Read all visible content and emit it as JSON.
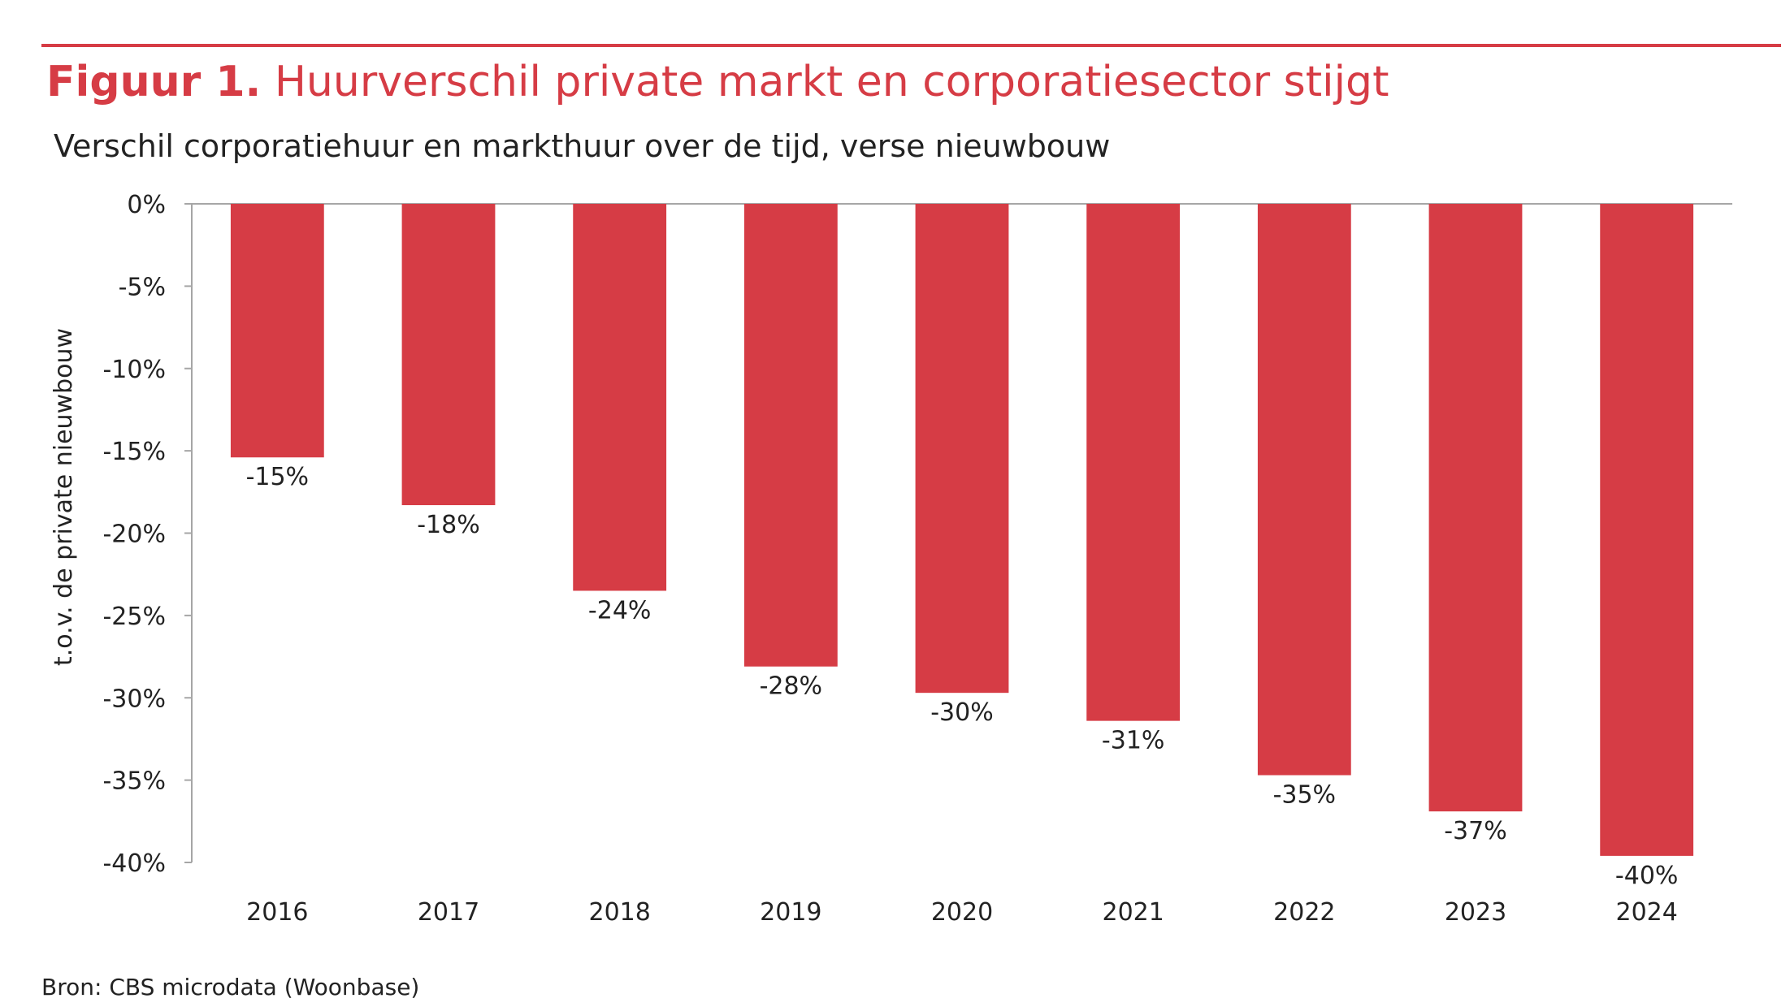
{
  "header": {
    "title_prefix": "Figuur 1.",
    "title": "Huurverschil private markt en corporatiesector stijgt",
    "subtitle": "Verschil corporatiehuur en markthuur over de tijd, verse nieuwbouw"
  },
  "footer": {
    "source": "Bron: CBS microdata (Woonbase)"
  },
  "colors": {
    "accent": "#d63c45",
    "bar": "#d63c45",
    "axis": "#a6a6a6",
    "text": "#222222"
  },
  "chart_data": {
    "type": "bar",
    "categories": [
      "2016",
      "2017",
      "2018",
      "2019",
      "2020",
      "2021",
      "2022",
      "2023",
      "2024"
    ],
    "values": [
      -15.4,
      -18.3,
      -23.5,
      -28.1,
      -29.7,
      -31.4,
      -34.7,
      -36.9,
      -39.6
    ],
    "data_labels": [
      "-15%",
      "-18%",
      "-24%",
      "-28%",
      "-30%",
      "-31%",
      "-35%",
      "-37%",
      "-40%"
    ],
    "ylabel": "t.o.v. de private nieuwbouw",
    "ylim": [
      -40,
      0
    ],
    "yticks": [
      0,
      -5,
      -10,
      -15,
      -20,
      -25,
      -30,
      -35,
      -40
    ],
    "ytick_labels": [
      "0%",
      "-5%",
      "-10%",
      "-15%",
      "-20%",
      "-25%",
      "-30%",
      "-35%",
      "-40%"
    ],
    "grid": false,
    "legend": "none"
  }
}
